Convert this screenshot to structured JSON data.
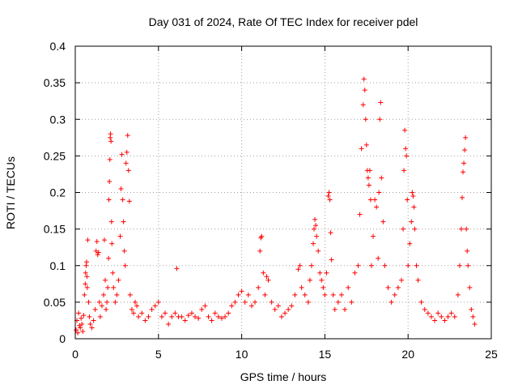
{
  "chart_data": {
    "type": "scatter",
    "title": "Day 031 of 2024, Rate Of TEC Index for receiver pdel",
    "xlabel": "GPS time / hours",
    "ylabel": "ROTI / TECUs",
    "xlim": [
      0,
      25
    ],
    "ylim": [
      0,
      0.4
    ],
    "x_ticks": [
      0,
      5,
      10,
      15,
      20,
      25
    ],
    "x_tick_labels": [
      "0",
      "5",
      "10",
      "15",
      "20",
      "25"
    ],
    "y_ticks": [
      0,
      0.05,
      0.1,
      0.15,
      0.2,
      0.25,
      0.3,
      0.35,
      0.4
    ],
    "y_tick_labels": [
      "0",
      "0.05",
      "0.1",
      "0.15",
      "0.2",
      "0.25",
      "0.3",
      "0.35",
      "0.4"
    ],
    "grid": true,
    "marker": "plus",
    "color": "#ff0000",
    "series": [
      {
        "name": "ROTI",
        "points": [
          [
            0.05,
            0.012
          ],
          [
            0.1,
            0.025
          ],
          [
            0.15,
            0.008
          ],
          [
            0.2,
            0.035
          ],
          [
            0.25,
            0.018
          ],
          [
            0.3,
            0.015
          ],
          [
            0.35,
            0.028
          ],
          [
            0.4,
            0.02
          ],
          [
            0.45,
            0.01
          ],
          [
            0.5,
            0.032
          ],
          [
            0.55,
            0.06
          ],
          [
            0.6,
            0.075
          ],
          [
            0.62,
            0.09
          ],
          [
            0.65,
            0.1
          ],
          [
            0.68,
            0.105
          ],
          [
            0.7,
            0.085
          ],
          [
            0.72,
            0.07
          ],
          [
            0.75,
            0.135
          ],
          [
            0.8,
            0.05
          ],
          [
            0.85,
            0.03
          ],
          [
            0.9,
            0.02
          ],
          [
            1.0,
            0.015
          ],
          [
            1.1,
            0.025
          ],
          [
            1.2,
            0.04
          ],
          [
            1.25,
            0.12
          ],
          [
            1.3,
            0.133
          ],
          [
            1.35,
            0.115
          ],
          [
            1.4,
            0.118
          ],
          [
            1.45,
            0.05
          ],
          [
            1.5,
            0.03
          ],
          [
            1.6,
            0.045
          ],
          [
            1.7,
            0.06
          ],
          [
            1.75,
            0.135
          ],
          [
            1.8,
            0.08
          ],
          [
            1.85,
            0.04
          ],
          [
            1.9,
            0.05
          ],
          [
            1.95,
            0.07
          ],
          [
            2.0,
            0.11
          ],
          [
            2.02,
            0.19
          ],
          [
            2.05,
            0.215
          ],
          [
            2.08,
            0.245
          ],
          [
            2.1,
            0.275
          ],
          [
            2.12,
            0.28
          ],
          [
            2.15,
            0.27
          ],
          [
            2.18,
            0.16
          ],
          [
            2.2,
            0.13
          ],
          [
            2.25,
            0.09
          ],
          [
            2.3,
            0.07
          ],
          [
            2.4,
            0.05
          ],
          [
            2.5,
            0.06
          ],
          [
            2.6,
            0.08
          ],
          [
            2.7,
            0.14
          ],
          [
            2.75,
            0.205
          ],
          [
            2.8,
            0.252
          ],
          [
            2.85,
            0.19
          ],
          [
            2.9,
            0.16
          ],
          [
            2.95,
            0.12
          ],
          [
            3.0,
            0.1
          ],
          [
            3.05,
            0.24
          ],
          [
            3.1,
            0.255
          ],
          [
            3.15,
            0.278
          ],
          [
            3.2,
            0.23
          ],
          [
            3.25,
            0.188
          ],
          [
            3.3,
            0.06
          ],
          [
            3.4,
            0.04
          ],
          [
            3.5,
            0.035
          ],
          [
            3.6,
            0.05
          ],
          [
            3.7,
            0.045
          ],
          [
            3.8,
            0.03
          ],
          [
            4.0,
            0.035
          ],
          [
            4.2,
            0.025
          ],
          [
            4.4,
            0.03
          ],
          [
            4.6,
            0.04
          ],
          [
            4.8,
            0.045
          ],
          [
            5.0,
            0.05
          ],
          [
            5.2,
            0.03
          ],
          [
            5.4,
            0.035
          ],
          [
            5.6,
            0.02
          ],
          [
            5.8,
            0.03
          ],
          [
            6.0,
            0.035
          ],
          [
            6.1,
            0.096
          ],
          [
            6.2,
            0.03
          ],
          [
            6.4,
            0.03
          ],
          [
            6.6,
            0.025
          ],
          [
            6.8,
            0.032
          ],
          [
            7.0,
            0.035
          ],
          [
            7.2,
            0.03
          ],
          [
            7.4,
            0.028
          ],
          [
            7.6,
            0.04
          ],
          [
            7.8,
            0.045
          ],
          [
            8.0,
            0.03
          ],
          [
            8.2,
            0.025
          ],
          [
            8.4,
            0.035
          ],
          [
            8.6,
            0.03
          ],
          [
            8.8,
            0.028
          ],
          [
            9.0,
            0.03
          ],
          [
            9.2,
            0.035
          ],
          [
            9.4,
            0.045
          ],
          [
            9.6,
            0.05
          ],
          [
            9.8,
            0.06
          ],
          [
            10.0,
            0.065
          ],
          [
            10.2,
            0.05
          ],
          [
            10.4,
            0.06
          ],
          [
            10.6,
            0.045
          ],
          [
            10.8,
            0.05
          ],
          [
            11.0,
            0.07
          ],
          [
            11.1,
            0.12
          ],
          [
            11.15,
            0.138
          ],
          [
            11.2,
            0.14
          ],
          [
            11.3,
            0.09
          ],
          [
            11.4,
            0.06
          ],
          [
            11.5,
            0.085
          ],
          [
            11.6,
            0.08
          ],
          [
            11.8,
            0.05
          ],
          [
            12.0,
            0.04
          ],
          [
            12.2,
            0.045
          ],
          [
            12.4,
            0.03
          ],
          [
            12.6,
            0.035
          ],
          [
            12.8,
            0.04
          ],
          [
            13.0,
            0.045
          ],
          [
            13.2,
            0.06
          ],
          [
            13.4,
            0.095
          ],
          [
            13.5,
            0.1
          ],
          [
            13.6,
            0.07
          ],
          [
            13.8,
            0.06
          ],
          [
            14.0,
            0.05
          ],
          [
            14.1,
            0.08
          ],
          [
            14.2,
            0.1
          ],
          [
            14.3,
            0.13
          ],
          [
            14.35,
            0.15
          ],
          [
            14.4,
            0.163
          ],
          [
            14.45,
            0.155
          ],
          [
            14.5,
            0.14
          ],
          [
            14.6,
            0.12
          ],
          [
            14.7,
            0.09
          ],
          [
            14.8,
            0.08
          ],
          [
            14.9,
            0.07
          ],
          [
            15.0,
            0.06
          ],
          [
            15.1,
            0.09
          ],
          [
            15.2,
            0.195
          ],
          [
            15.25,
            0.2
          ],
          [
            15.3,
            0.19
          ],
          [
            15.35,
            0.145
          ],
          [
            15.4,
            0.108
          ],
          [
            15.5,
            0.06
          ],
          [
            15.6,
            0.04
          ],
          [
            15.8,
            0.05
          ],
          [
            16.0,
            0.06
          ],
          [
            16.2,
            0.04
          ],
          [
            16.4,
            0.07
          ],
          [
            16.6,
            0.05
          ],
          [
            16.8,
            0.09
          ],
          [
            17.0,
            0.1
          ],
          [
            17.1,
            0.17
          ],
          [
            17.2,
            0.26
          ],
          [
            17.3,
            0.32
          ],
          [
            17.35,
            0.355
          ],
          [
            17.4,
            0.34
          ],
          [
            17.45,
            0.3
          ],
          [
            17.5,
            0.265
          ],
          [
            17.55,
            0.23
          ],
          [
            17.6,
            0.22
          ],
          [
            17.65,
            0.21
          ],
          [
            17.7,
            0.23
          ],
          [
            17.75,
            0.19
          ],
          [
            17.8,
            0.1
          ],
          [
            17.9,
            0.14
          ],
          [
            18.0,
            0.19
          ],
          [
            18.1,
            0.18
          ],
          [
            18.2,
            0.11
          ],
          [
            18.25,
            0.2
          ],
          [
            18.3,
            0.3
          ],
          [
            18.35,
            0.323
          ],
          [
            18.4,
            0.22
          ],
          [
            18.5,
            0.16
          ],
          [
            18.6,
            0.1
          ],
          [
            18.8,
            0.07
          ],
          [
            19.0,
            0.05
          ],
          [
            19.2,
            0.06
          ],
          [
            19.4,
            0.07
          ],
          [
            19.6,
            0.08
          ],
          [
            19.7,
            0.15
          ],
          [
            19.75,
            0.23
          ],
          [
            19.8,
            0.285
          ],
          [
            19.85,
            0.26
          ],
          [
            19.9,
            0.25
          ],
          [
            19.95,
            0.19
          ],
          [
            20.0,
            0.1
          ],
          [
            20.1,
            0.13
          ],
          [
            20.2,
            0.16
          ],
          [
            20.25,
            0.2
          ],
          [
            20.3,
            0.195
          ],
          [
            20.35,
            0.18
          ],
          [
            20.4,
            0.15
          ],
          [
            20.5,
            0.1
          ],
          [
            20.6,
            0.08
          ],
          [
            20.8,
            0.05
          ],
          [
            21.0,
            0.04
          ],
          [
            21.2,
            0.035
          ],
          [
            21.4,
            0.03
          ],
          [
            21.6,
            0.025
          ],
          [
            21.8,
            0.035
          ],
          [
            22.0,
            0.03
          ],
          [
            22.2,
            0.025
          ],
          [
            22.4,
            0.03
          ],
          [
            22.6,
            0.035
          ],
          [
            22.8,
            0.03
          ],
          [
            23.0,
            0.06
          ],
          [
            23.1,
            0.1
          ],
          [
            23.2,
            0.15
          ],
          [
            23.25,
            0.193
          ],
          [
            23.3,
            0.228
          ],
          [
            23.35,
            0.24
          ],
          [
            23.4,
            0.258
          ],
          [
            23.45,
            0.275
          ],
          [
            23.5,
            0.15
          ],
          [
            23.55,
            0.12
          ],
          [
            23.6,
            0.1
          ],
          [
            23.7,
            0.07
          ],
          [
            23.8,
            0.04
          ],
          [
            23.9,
            0.03
          ],
          [
            24.0,
            0.02
          ]
        ]
      }
    ]
  }
}
